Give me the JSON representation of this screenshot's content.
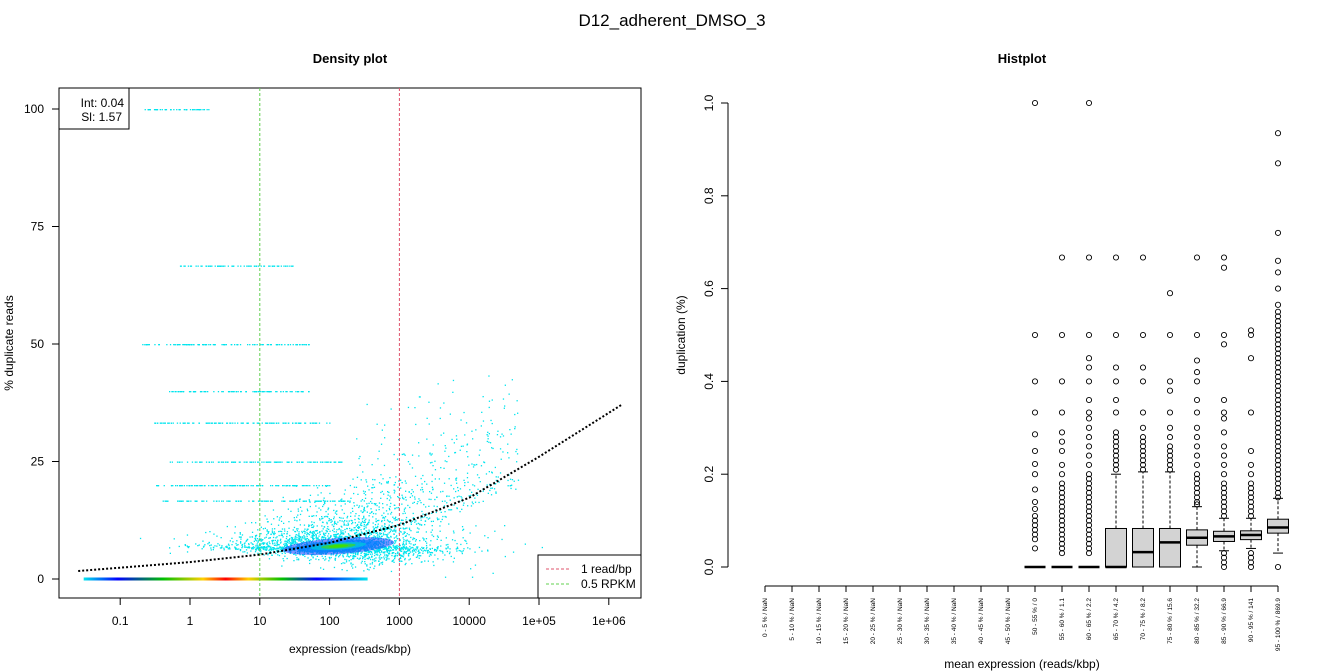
{
  "figure": {
    "title": "D12_adherent_DMSO_3"
  },
  "chart_data": [
    {
      "type": "scatter",
      "title": "Density plot",
      "xlabel": "expression (reads/kbp)",
      "ylabel": "% duplicate reads",
      "x_scale": "log10",
      "xlim": [
        0.02,
        2000000
      ],
      "ylim": [
        0,
        100
      ],
      "x_ticks": [
        {
          "value": 0.1,
          "label": "0.1"
        },
        {
          "value": 1,
          "label": "1"
        },
        {
          "value": 10,
          "label": "10"
        },
        {
          "value": 100,
          "label": "100"
        },
        {
          "value": 1000,
          "label": "1000"
        },
        {
          "value": 10000,
          "label": "10000"
        },
        {
          "value": 100000,
          "label": "1e+05"
        },
        {
          "value": 1000000,
          "label": "1e+06"
        }
      ],
      "y_ticks": [
        {
          "value": 0,
          "label": "0"
        },
        {
          "value": 25,
          "label": "25"
        },
        {
          "value": 50,
          "label": "50"
        },
        {
          "value": 75,
          "label": "75"
        },
        {
          "value": 100,
          "label": "100"
        }
      ],
      "fit_box": {
        "line1": "Int: 0.04",
        "line2": "Sl: 1.57"
      },
      "fit_curve": {
        "color": "#000000",
        "points": [
          [
            0.025,
            1.7
          ],
          [
            0.1,
            2.4
          ],
          [
            1,
            3.6
          ],
          [
            10,
            5.2
          ],
          [
            100,
            7.7
          ],
          [
            1000,
            11.5
          ],
          [
            10000,
            17.3
          ],
          [
            100000,
            26.0
          ],
          [
            1500000,
            37.0
          ]
        ]
      },
      "vlines": [
        {
          "name": "1 read/bp",
          "x": 1000,
          "color": "#DF536B"
        },
        {
          "name": "0.5 RPKM",
          "x": 10,
          "color": "#61D04F"
        }
      ],
      "legend": {
        "position": "bottom-right",
        "entries": [
          {
            "label": "1 read/bp",
            "color": "#DF536B"
          },
          {
            "label": "0.5 RPKM",
            "color": "#61D04F"
          }
        ]
      },
      "point_color": "#00E5EE",
      "dense_cloud": {
        "center_x": 150,
        "center_y": 7
      },
      "zero_band_x_range": [
        0.03,
        350
      ],
      "duplicate_bands": [
        {
          "y": 50,
          "x_range": [
            0.2,
            50
          ]
        },
        {
          "y": 33.3,
          "x_range": [
            0.3,
            100
          ]
        },
        {
          "y": 25,
          "x_range": [
            0.5,
            150
          ]
        },
        {
          "y": 20,
          "x_range": [
            0.3,
            100
          ]
        },
        {
          "y": 16.7,
          "x_range": [
            0.4,
            200
          ]
        },
        {
          "y": 66.7,
          "x_range": [
            0.7,
            30
          ]
        },
        {
          "y": 40,
          "x_range": [
            0.5,
            50
          ]
        },
        {
          "y": 100,
          "x_range": [
            0.2,
            2
          ]
        }
      ]
    },
    {
      "type": "box",
      "title": "Histplot",
      "xlabel": "mean expression (reads/kbp)",
      "ylabel": "duplication (%)",
      "ylim": [
        0,
        1
      ],
      "y_ticks": [
        {
          "value": 0,
          "label": "0.0"
        },
        {
          "value": 0.2,
          "label": "0.2"
        },
        {
          "value": 0.4,
          "label": "0.4"
        },
        {
          "value": 0.6,
          "label": "0.6"
        },
        {
          "value": 0.8,
          "label": "0.8"
        },
        {
          "value": 1,
          "label": "1.0"
        }
      ],
      "box_fill": "#D3D3D3",
      "categories": [
        "0 - 5 % / NaN",
        "5 - 10 % / NaN",
        "10 - 15 % / NaN",
        "15 - 20 % / NaN",
        "20 - 25 % / NaN",
        "25 - 30 % / NaN",
        "30 - 35 % / NaN",
        "35 - 40 % / NaN",
        "40 - 45 % / NaN",
        "45 - 50 % / NaN",
        "50 - 55 % / 0",
        "55 - 60 % / 1.1",
        "60 - 65 % / 2.2",
        "65 - 70 % / 4.2",
        "70 - 75 % / 8.2",
        "75 - 80 % / 15.6",
        "80 - 85 % / 32.2",
        "85 - 90 % / 66.9",
        "90 - 95 % / 141",
        "95 - 100 % / 869.9"
      ],
      "boxes": [
        null,
        null,
        null,
        null,
        null,
        null,
        null,
        null,
        null,
        null,
        {
          "min": 0,
          "q1": 0,
          "median": 0,
          "q3": 0,
          "max": 0,
          "outliers": [
            0.04,
            0.06,
            0.07,
            0.08,
            0.09,
            0.1,
            0.11,
            0.125,
            0.14,
            0.167,
            0.2,
            0.222,
            0.25,
            0.286,
            0.333,
            0.4,
            0.5,
            1.0
          ]
        },
        {
          "min": 0,
          "q1": 0,
          "median": 0,
          "q3": 0,
          "max": 0,
          "outliers": [
            0.03,
            0.04,
            0.05,
            0.06,
            0.07,
            0.08,
            0.09,
            0.1,
            0.11,
            0.12,
            0.13,
            0.14,
            0.15,
            0.16,
            0.17,
            0.18,
            0.2,
            0.22,
            0.25,
            0.27,
            0.29,
            0.333,
            0.4,
            0.5,
            0.667
          ]
        },
        {
          "min": 0,
          "q1": 0,
          "median": 0,
          "q3": 0,
          "max": 0,
          "outliers": [
            0.03,
            0.04,
            0.05,
            0.06,
            0.07,
            0.08,
            0.09,
            0.1,
            0.11,
            0.12,
            0.13,
            0.14,
            0.15,
            0.16,
            0.17,
            0.18,
            0.19,
            0.2,
            0.22,
            0.24,
            0.26,
            0.28,
            0.3,
            0.32,
            0.333,
            0.36,
            0.4,
            0.43,
            0.45,
            0.5,
            0.667,
            1.0
          ]
        },
        {
          "min": 0,
          "q1": 0,
          "median": 0,
          "q3": 0.083,
          "max": 0.2,
          "outliers": [
            0.21,
            0.22,
            0.23,
            0.24,
            0.25,
            0.26,
            0.27,
            0.28,
            0.29,
            0.333,
            0.36,
            0.4,
            0.43,
            0.5,
            0.667
          ]
        },
        {
          "min": 0,
          "q1": 0,
          "median": 0.032,
          "q3": 0.083,
          "max": 0.205,
          "outliers": [
            0.21,
            0.22,
            0.23,
            0.24,
            0.25,
            0.26,
            0.27,
            0.28,
            0.3,
            0.333,
            0.4,
            0.43,
            0.5,
            0.667
          ]
        },
        {
          "min": 0,
          "q1": 0,
          "median": 0.053,
          "q3": 0.083,
          "max": 0.205,
          "outliers": [
            0.21,
            0.22,
            0.23,
            0.24,
            0.25,
            0.26,
            0.28,
            0.3,
            0.333,
            0.38,
            0.4,
            0.5,
            0.59
          ]
        },
        {
          "min": 0,
          "q1": 0.047,
          "median": 0.063,
          "q3": 0.08,
          "max": 0.13,
          "outliers": [
            0.135,
            0.14,
            0.15,
            0.16,
            0.17,
            0.18,
            0.19,
            0.2,
            0.22,
            0.24,
            0.26,
            0.28,
            0.3,
            0.333,
            0.36,
            0.4,
            0.42,
            0.445,
            0.5,
            0.667
          ]
        },
        {
          "min": 0.035,
          "q1": 0.055,
          "median": 0.066,
          "q3": 0.077,
          "max": 0.105,
          "outliers": [
            0,
            0.01,
            0.02,
            0.03,
            0.11,
            0.12,
            0.13,
            0.14,
            0.15,
            0.16,
            0.17,
            0.18,
            0.2,
            0.22,
            0.24,
            0.26,
            0.29,
            0.32,
            0.333,
            0.36,
            0.48,
            0.5,
            0.645,
            0.667
          ]
        },
        {
          "min": 0.04,
          "q1": 0.059,
          "median": 0.069,
          "q3": 0.078,
          "max": 0.105,
          "outliers": [
            0,
            0.01,
            0.02,
            0.03,
            0.11,
            0.12,
            0.13,
            0.14,
            0.15,
            0.16,
            0.17,
            0.18,
            0.2,
            0.22,
            0.25,
            0.333,
            0.45,
            0.5,
            0.51
          ]
        },
        {
          "min": 0.03,
          "q1": 0.073,
          "median": 0.085,
          "q3": 0.103,
          "max": 0.148,
          "outliers": [
            0,
            0.15,
            0.16,
            0.17,
            0.18,
            0.19,
            0.2,
            0.21,
            0.22,
            0.23,
            0.24,
            0.25,
            0.26,
            0.27,
            0.28,
            0.29,
            0.3,
            0.31,
            0.32,
            0.33,
            0.34,
            0.35,
            0.36,
            0.37,
            0.38,
            0.39,
            0.4,
            0.41,
            0.42,
            0.43,
            0.44,
            0.45,
            0.46,
            0.47,
            0.48,
            0.49,
            0.5,
            0.51,
            0.52,
            0.53,
            0.54,
            0.55,
            0.565,
            0.6,
            0.635,
            0.66,
            0.72,
            0.87,
            0.935
          ]
        }
      ]
    }
  ]
}
